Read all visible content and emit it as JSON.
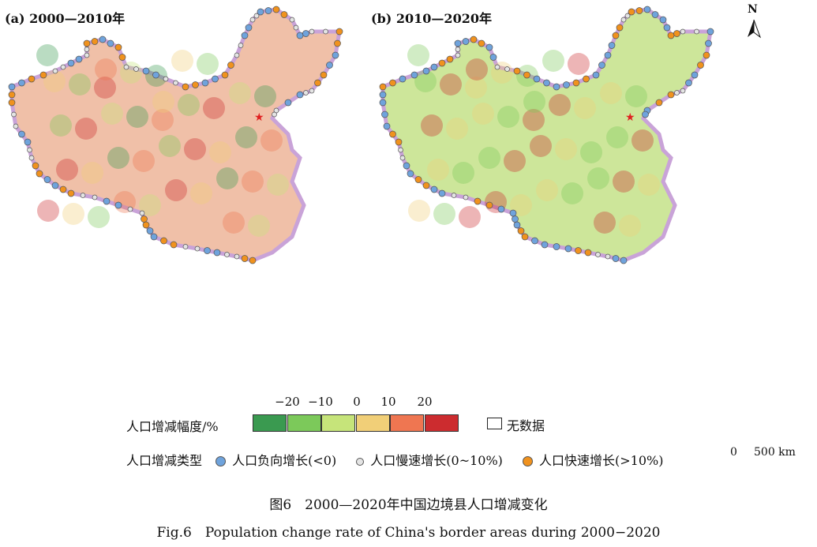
{
  "panels": [
    {
      "title": "(a) 2000—2010年"
    },
    {
      "title": "(b) 2010—2020年"
    }
  ],
  "north_label": "N",
  "scale": {
    "zero": "0",
    "label": "500 km"
  },
  "legend": {
    "rate_title": "人口增减幅度/%",
    "ticks": [
      "−20",
      "−10",
      "0",
      "10",
      "20"
    ],
    "colors": [
      "#3a9a50",
      "#7cc95a",
      "#c6e47a",
      "#f1cf78",
      "#ef7651",
      "#cc2c2f"
    ],
    "no_data": "无数据",
    "type_title": "人口增减类型",
    "types": [
      {
        "label": "人口负向增长(<0)",
        "color": "#6fa3dc"
      },
      {
        "label": "人口慢速增长(0~10%)",
        "color": "#e4e4e4"
      },
      {
        "label": "人口快速增长(>10%)",
        "color": "#f0921e"
      }
    ]
  },
  "caption_cn": "图6　2000—2020年中国边境县人口增减变化",
  "caption_en": "Fig.6　Population change rate of China's border areas during 2000−2020"
}
